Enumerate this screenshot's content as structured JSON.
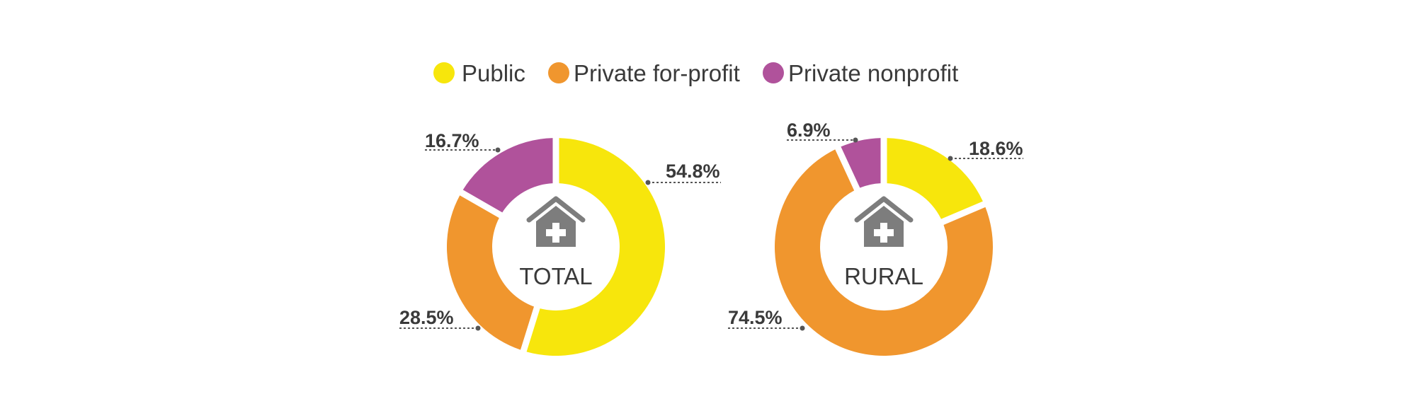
{
  "chart_data": [
    {
      "type": "pie",
      "center_label": "TOTAL",
      "icon": "hospital-house-icon",
      "categories": [
        "Public",
        "Private for-profit",
        "Private nonprofit"
      ],
      "values": [
        54.8,
        28.5,
        16.7
      ],
      "labels": [
        "54.8%",
        "28.5%",
        "16.7%"
      ],
      "legend_placement": "top-center"
    },
    {
      "type": "pie",
      "center_label": "RURAL",
      "icon": "hospital-house-icon",
      "categories": [
        "Public",
        "Private for-profit",
        "Private nonprofit"
      ],
      "values": [
        18.6,
        74.5,
        6.9
      ],
      "labels": [
        "18.6%",
        "74.5%",
        "6.9%"
      ],
      "legend_placement": "top-center"
    }
  ],
  "legend": [
    {
      "label": "Public",
      "color": "#f7e60c"
    },
    {
      "label": "Private for-profit",
      "color": "#f0962e"
    },
    {
      "label": "Private nonprofit",
      "color": "#b0529b"
    }
  ],
  "colors": {
    "public": "#f7e60c",
    "private_for_profit": "#f0962e",
    "private_nonprofit": "#b0529b",
    "icon": "#7d7d7d",
    "text": "#3a3a3a"
  }
}
